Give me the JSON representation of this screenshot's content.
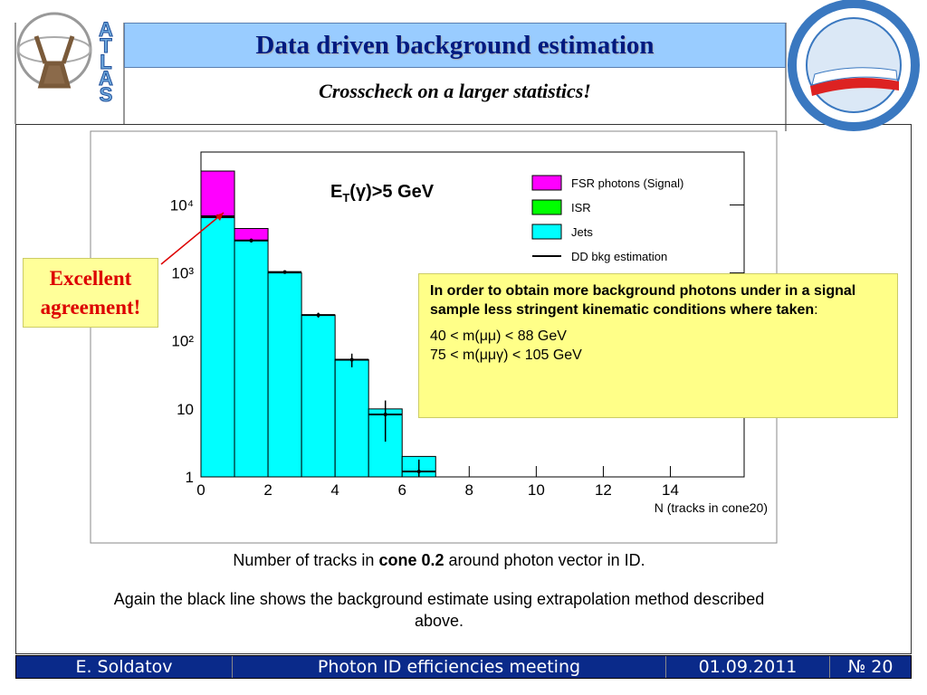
{
  "header": {
    "title": "Data driven background estimation",
    "subtitle": "Crosscheck on a larger statistics!",
    "logo_left": "ATLAS"
  },
  "chart_data": {
    "type": "histogram",
    "annotation": {
      "main": "E",
      "sub": "T",
      "rest": "(γ)>5 GeV"
    },
    "x_label": "N (tracks in cone20)",
    "bins": [
      0,
      1,
      2,
      3,
      4,
      5,
      6,
      7
    ],
    "series": [
      {
        "name": "Jets",
        "color": "#00ffff",
        "values": [
          6500,
          3000,
          1000,
          240,
          53,
          10,
          2
        ]
      },
      {
        "name": "ISR",
        "color": "#00ff00",
        "values": [
          0,
          0,
          0,
          0,
          0,
          0,
          0
        ]
      },
      {
        "name": "FSR photons (Signal)",
        "color": "#ff00ff",
        "values": [
          25000,
          1500,
          0,
          0,
          0,
          0,
          0
        ]
      }
    ],
    "estimate": {
      "name": "DD bkg estimation",
      "color": "#000000",
      "values": [
        6800,
        3000,
        1030,
        240,
        53,
        8.3,
        1.2
      ],
      "errors": [
        300,
        200,
        60,
        20,
        12,
        5,
        0.6
      ]
    },
    "xlim": [
      0,
      16.2
    ],
    "xticks": [
      0,
      2,
      4,
      6,
      8,
      10,
      12,
      14
    ],
    "ylim": [
      1,
      60000
    ],
    "log_y": true,
    "yticks": [
      1,
      10,
      {
        "value": 100,
        "label": "10²"
      },
      {
        "value": 1000,
        "label": "10³"
      },
      {
        "value": 10000,
        "label": "10⁴"
      }
    ],
    "legend": "upper right"
  },
  "callout": "Excellent agreement!",
  "note": {
    "bold": "In order to obtain more background photons under in a signal sample less stringent kinematic conditions where taken",
    "colon": ":",
    "lines": [
      "40 < m(μμ) < 88 GeV",
      "75 < m(μμγ) < 105 GeV"
    ]
  },
  "caption": {
    "before": "Number of tracks in ",
    "bold": "cone 0.2",
    "after": " around photon vector in ID.",
    "second": "Again the black line shows the background estimate using extrapolation method described above."
  },
  "footer": {
    "author": "E. Soldatov",
    "meeting": "Photon ID efficiencies meeting",
    "date": "01.09.2011",
    "page": "№ 20"
  }
}
